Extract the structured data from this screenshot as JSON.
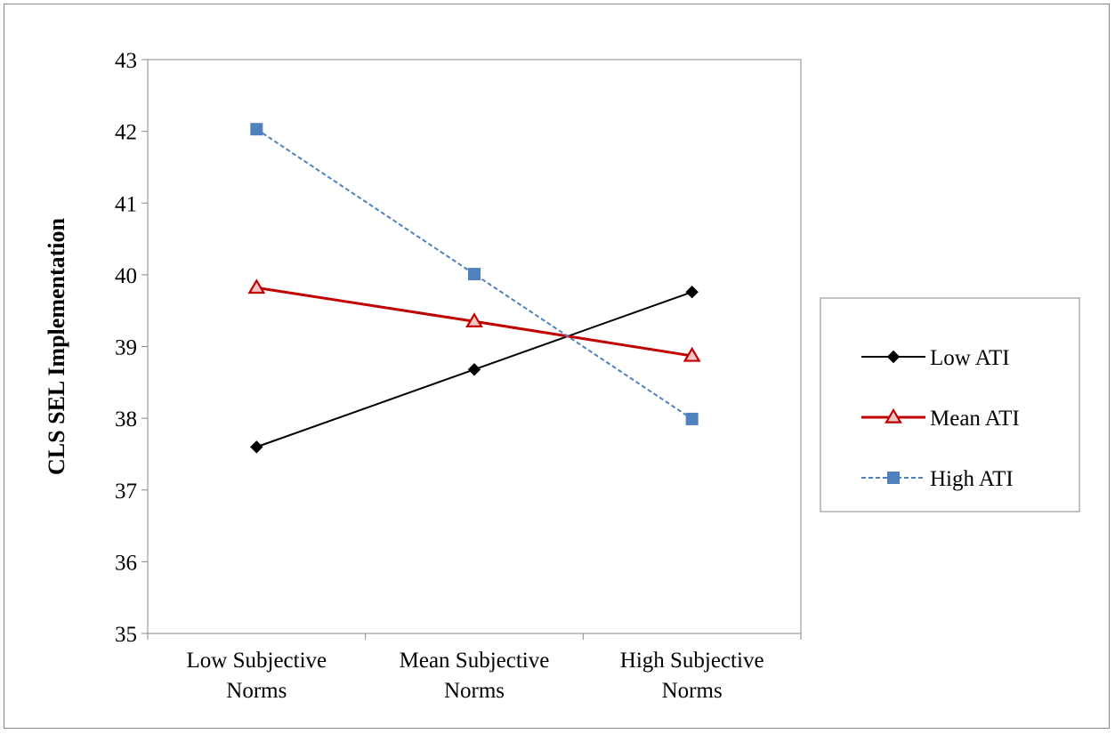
{
  "chart_data": {
    "type": "line",
    "title": "",
    "ylabel": "CLS SEL Implementation",
    "xlabel": "",
    "ylim": [
      35,
      43
    ],
    "yticks": [
      35,
      36,
      37,
      38,
      39,
      40,
      41,
      42,
      43
    ],
    "categories": [
      [
        "Low Subjective",
        "Norms"
      ],
      [
        "Mean Subjective",
        "Norms"
      ],
      [
        "High Subjective",
        "Norms"
      ]
    ],
    "series": [
      {
        "name": "Low ATI",
        "values": [
          37.6,
          38.68,
          39.76
        ],
        "color": "#000000",
        "marker": "diamond",
        "dash": "solid"
      },
      {
        "name": "Mean ATI",
        "values": [
          39.82,
          39.35,
          38.87
        ],
        "color": "#c00000",
        "marker": "triangle",
        "dash": "solid"
      },
      {
        "name": "High ATI",
        "values": [
          42.03,
          40.01,
          37.99
        ],
        "color": "#4f81bd",
        "marker": "square",
        "dash": "dashed"
      }
    ],
    "legend_position": "right",
    "grid": false
  }
}
